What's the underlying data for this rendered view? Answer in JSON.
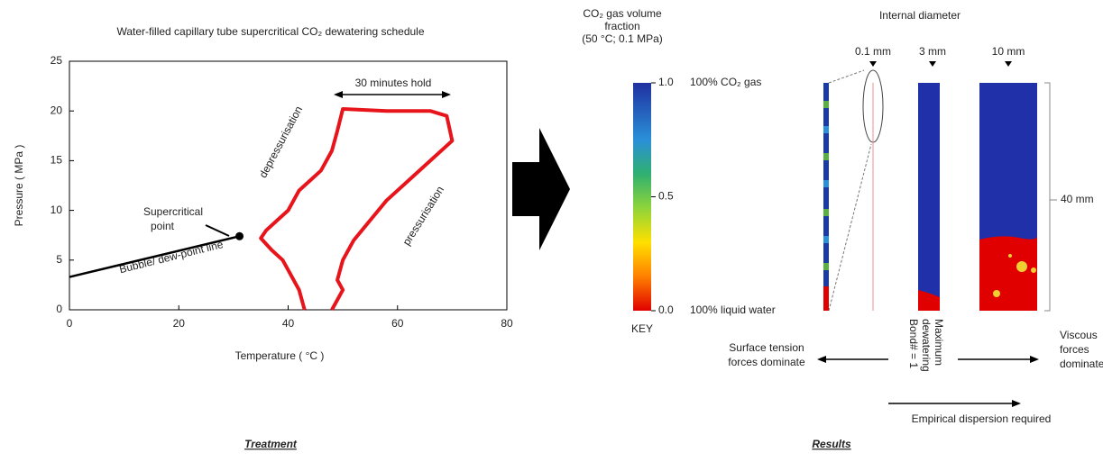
{
  "chart_data": {
    "type": "line",
    "title": "Water-filled capillary tube supercritical CO₂ dewatering schedule",
    "x_label": "Temperature ( °C )",
    "y_label": "Pressure ( MPa )",
    "xlim": [
      0,
      80
    ],
    "ylim": [
      0,
      25
    ],
    "xticks": [
      0,
      20,
      40,
      60,
      80
    ],
    "yticks": [
      0,
      5,
      10,
      15,
      20,
      25
    ],
    "series": [
      {
        "color": "#000000",
        "marker": "end",
        "x": [
          0,
          31.1
        ],
        "values": [
          3.3,
          7.4
        ]
      },
      {
        "color": "#e8141b",
        "x": [
          48,
          50,
          49,
          50,
          52,
          55,
          58,
          62,
          66,
          70,
          69,
          66,
          58,
          50,
          49,
          48,
          46,
          44,
          42,
          41,
          40,
          38,
          36,
          35,
          37,
          39,
          40,
          41,
          42,
          43
        ],
        "values": [
          0,
          2,
          3,
          5,
          7,
          9,
          11,
          13,
          15,
          17,
          19.5,
          20,
          20,
          20.2,
          18,
          16,
          14,
          13,
          12,
          11,
          10,
          9,
          8,
          7.2,
          6,
          5,
          4,
          3,
          2,
          0
        ]
      }
    ],
    "annotations": {
      "hold": "30 minutes hold",
      "depressurisation": "depressurisation",
      "pressurisation": "pressurisation",
      "supercritical": [
        "Supercritical",
        "point"
      ],
      "bubble_line": "Bubble/ dew-point line"
    },
    "caption": "Treatment"
  },
  "diagram": {
    "colorbar_title": [
      "CO₂ gas volume",
      "fraction",
      "(50 °C; 0.1 MPa)"
    ],
    "colorbar": {
      "lim": [
        0,
        1
      ],
      "ticks": [
        {
          "value": 1,
          "label": "1.0"
        },
        {
          "value": 0.5,
          "label": "0.5"
        },
        {
          "value": 0,
          "label": "0.0"
        }
      ],
      "top_label": "100% CO₂ gas",
      "bottom_label": "100% liquid water"
    },
    "key": "KEY",
    "diameter_title": "Internal diameter",
    "diameters": [
      "0.1 mm",
      "3 mm",
      "10 mm"
    ],
    "height_label": "40 mm",
    "left_arrow": [
      "Surface tension",
      "forces dominate"
    ],
    "center": [
      "Maximum",
      "dewatering",
      "Bond# = 1"
    ],
    "right_arrow": [
      "Viscous",
      "forces",
      "dominate"
    ],
    "bottom_arrow": "Empirical dispersion required",
    "caption": "Results"
  }
}
